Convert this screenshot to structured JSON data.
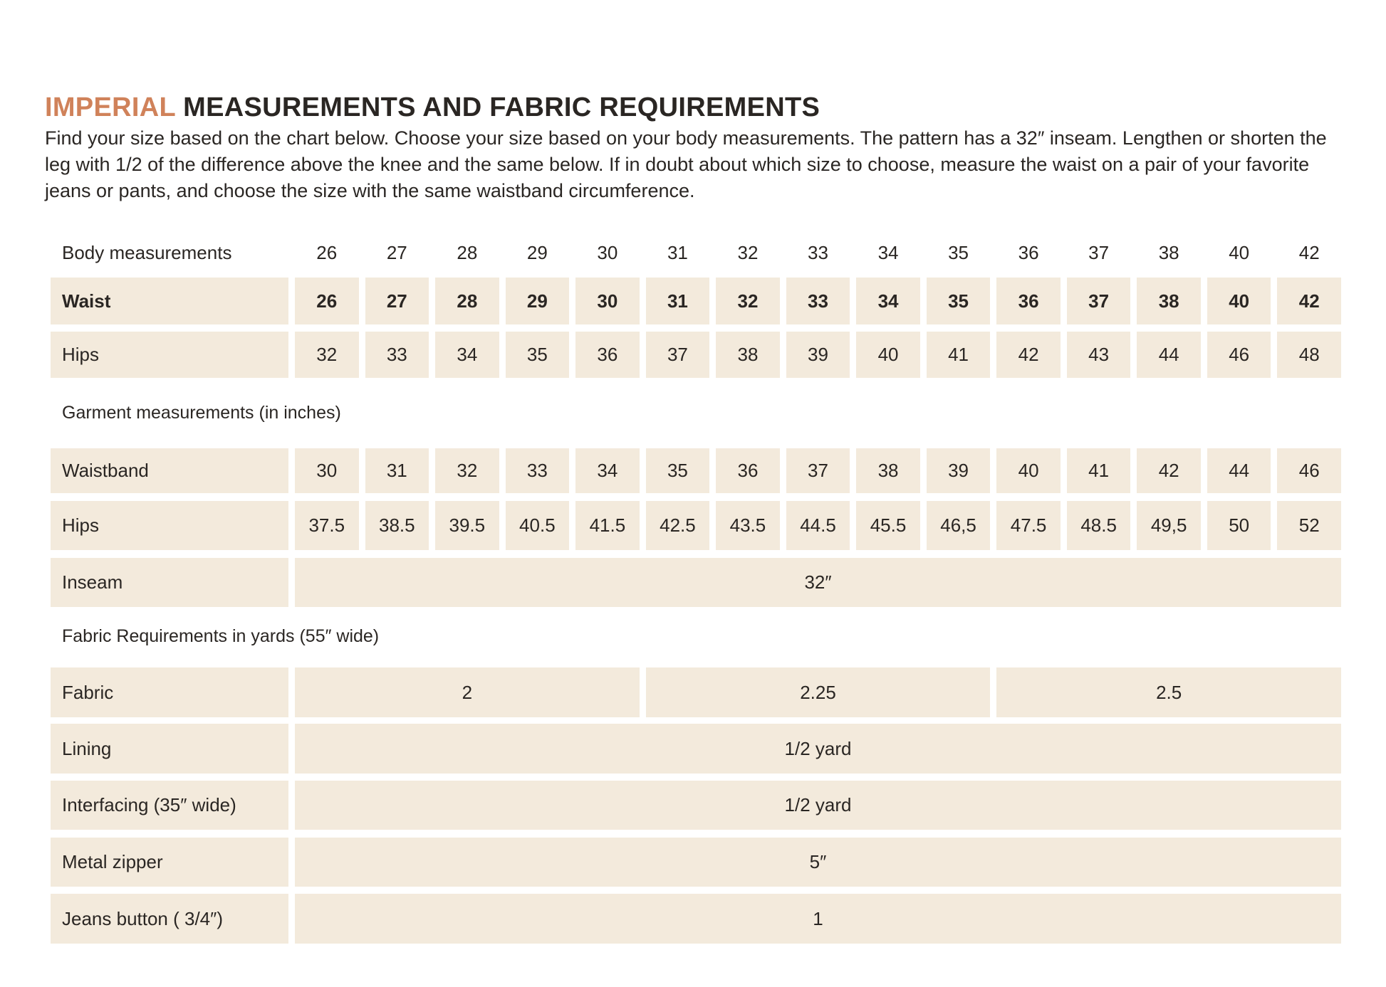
{
  "title": {
    "accent": "IMPERIAL",
    "rest": " MEASUREMENTS AND FABRIC REQUIREMENTS"
  },
  "intro": "Find your size based on the chart below. Choose your size based on your body measurements. The pattern has a 32″ inseam. Lengthen or shorten the leg with 1/2 of the difference above the knee and the same below. If in doubt about which size to choose, measure the waist on a pair of your favorite jeans or pants, and choose the size with the same waistband circumference.",
  "colors": {
    "accent": "#d0825a",
    "cell": "#f3eadc"
  },
  "body": {
    "header": {
      "label": "Body measurements",
      "values": [
        "26",
        "27",
        "28",
        "29",
        "30",
        "31",
        "32",
        "33",
        "34",
        "35",
        "36",
        "37",
        "38",
        "40",
        "42"
      ]
    },
    "rows": [
      {
        "label": "Waist",
        "values": [
          "26",
          "27",
          "28",
          "29",
          "30",
          "31",
          "32",
          "33",
          "34",
          "35",
          "36",
          "37",
          "38",
          "40",
          "42"
        ]
      },
      {
        "label": "Hips",
        "values": [
          "32",
          "33",
          "34",
          "35",
          "36",
          "37",
          "38",
          "39",
          "40",
          "41",
          "42",
          "43",
          "44",
          "46",
          "48"
        ]
      }
    ]
  },
  "garment": {
    "heading": "Garment measurements (in inches)",
    "rows": [
      {
        "label": "Waistband",
        "values": [
          "30",
          "31",
          "32",
          "33",
          "34",
          "35",
          "36",
          "37",
          "38",
          "39",
          "40",
          "41",
          "42",
          "44",
          "46"
        ]
      },
      {
        "label": "Hips",
        "values": [
          "37.5",
          "38.5",
          "39.5",
          "40.5",
          "41.5",
          "42.5",
          "43.5",
          "44.5",
          "45.5",
          "46,5",
          "47.5",
          "48.5",
          "49,5",
          "50",
          "52"
        ]
      },
      {
        "label": "Inseam",
        "span_value": "32″"
      }
    ]
  },
  "fabric": {
    "heading": "Fabric Requirements in yards (55″ wide)",
    "rows": [
      {
        "label": "Fabric",
        "groups": [
          "2",
          "2.25",
          "2.5"
        ]
      },
      {
        "label": "Lining",
        "span_value": "1/2 yard"
      },
      {
        "label": "Interfacing (35″ wide)",
        "span_value": "1/2 yard"
      },
      {
        "label": "Metal zipper",
        "span_value": "5″"
      },
      {
        "label": "Jeans button ( 3/4″)",
        "span_value": "1"
      }
    ]
  }
}
